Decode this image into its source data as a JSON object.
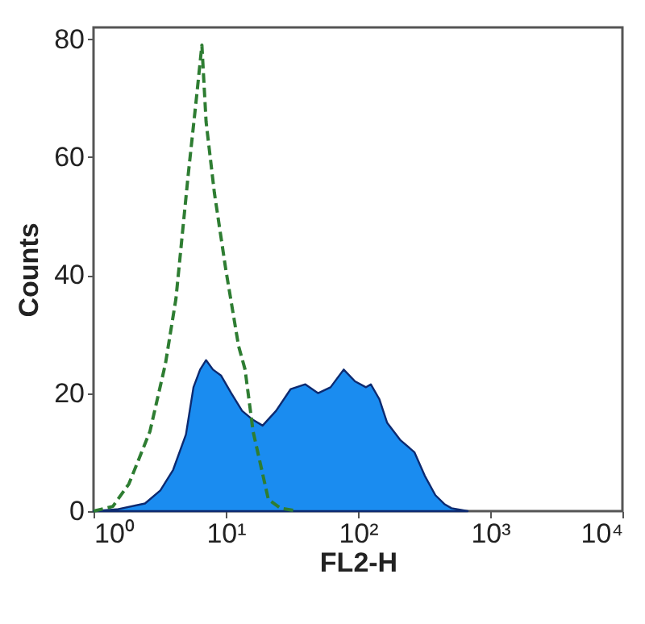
{
  "chart_data": {
    "type": "area",
    "xlabel": "FL2-H",
    "ylabel": "Counts",
    "log": "x",
    "xlim": [
      1,
      10000
    ],
    "xticks": [
      {
        "value": 1,
        "label": "10⁰"
      },
      {
        "value": 10,
        "label": "10¹"
      },
      {
        "value": 100,
        "label": "10²"
      },
      {
        "value": 1000,
        "label": "10³"
      },
      {
        "value": 10000,
        "label": "10⁴"
      }
    ],
    "ylim": [
      0,
      82
    ],
    "yticks": [
      0,
      20,
      40,
      60,
      80
    ],
    "grid": false,
    "series": [
      {
        "color": "#1a8cf0",
        "x": [
          1,
          1.5,
          2.45,
          3.2,
          4.0,
          5.0,
          5.7,
          6.4,
          7.1,
          8.0,
          9.2,
          11,
          13.3,
          16,
          19,
          24,
          31,
          40,
          50,
          62,
          78,
          95,
          115,
          125,
          145,
          166,
          210,
          267,
          320,
          385,
          450,
          510,
          600,
          675
        ],
        "values": [
          0,
          0.3,
          1.3,
          3.5,
          7,
          13,
          21,
          24,
          25.6,
          24,
          23,
          20,
          17,
          15.5,
          14.5,
          17,
          20.7,
          21.5,
          20,
          21,
          24,
          22,
          21,
          21.5,
          19,
          15,
          12,
          10,
          6,
          2.7,
          1.2,
          0.5,
          0.2,
          0
        ]
      },
      {
        "type": "line",
        "color": "#2e7d32",
        "line_style": "dashed",
        "x": [
          1,
          1.4,
          1.85,
          2.67,
          3.5,
          4.2,
          5.2,
          6.0,
          6.6,
          7.1,
          8.2,
          10,
          12.5,
          14,
          16.1,
          21,
          26,
          35
        ],
        "values": [
          0,
          0.8,
          4.6,
          13.5,
          25,
          36,
          57,
          70,
          79,
          66,
          54,
          41,
          28,
          24,
          13.5,
          2,
          0.5,
          0
        ]
      }
    ]
  }
}
